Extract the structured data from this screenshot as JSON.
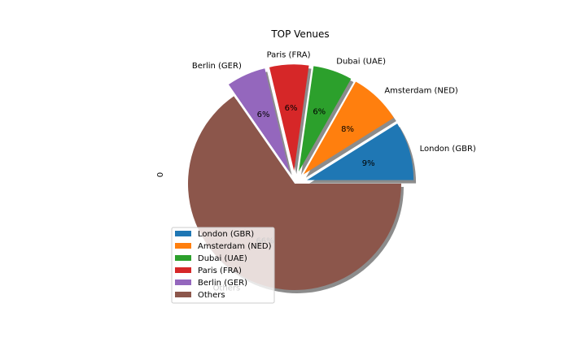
{
  "chart_data": {
    "type": "pie",
    "title": "TOP Venues",
    "ylabel": "0",
    "categories": [
      "London (GBR)",
      "Amsterdam (NED)",
      "Dubai (UAE)",
      "Paris (FRA)",
      "Berlin (GER)",
      "Others"
    ],
    "values": [
      9,
      8,
      6,
      6,
      6,
      66
    ],
    "pct_labels": [
      "9%",
      "8%",
      "6%",
      "6%",
      "6%",
      "66%"
    ],
    "colors": [
      "#1f77b4",
      "#ff7f0e",
      "#2ca02c",
      "#d62728",
      "#9467bd",
      "#8c564b"
    ],
    "shadow": true,
    "legend_position": "lower-left",
    "legend": [
      "London (GBR)",
      "Amsterdam (NED)",
      "Dubai (UAE)",
      "Paris (FRA)",
      "Berlin (GER)",
      "Others"
    ]
  }
}
